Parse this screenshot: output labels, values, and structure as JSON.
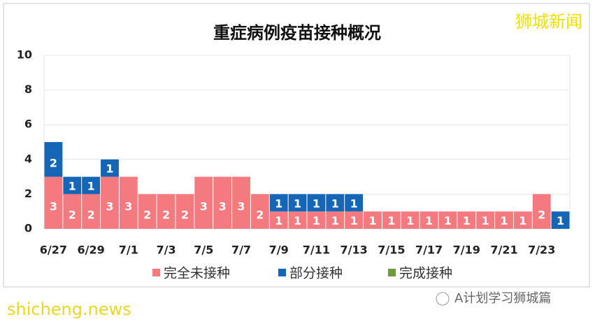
{
  "chart_data": {
    "type": "stacked_bar",
    "title": "重症病例疫苗接种概况",
    "categories": [
      "6/27",
      null,
      "6/29",
      null,
      "7/1",
      null,
      "7/3",
      null,
      "7/5",
      null,
      "7/7",
      null,
      "7/9",
      null,
      "7/11",
      null,
      "7/13",
      null,
      "7/15",
      null,
      "7/17",
      null,
      "7/19",
      null,
      "7/21",
      null,
      "7/23",
      null
    ],
    "series": [
      {
        "name": "完全未接种",
        "color": "#f47a80",
        "values": [
          3,
          2,
          2,
          3,
          3,
          2,
          2,
          2,
          3,
          3,
          3,
          2,
          1,
          1,
          1,
          1,
          1,
          1,
          1,
          1,
          1,
          1,
          1,
          1,
          1,
          1,
          2,
          0
        ]
      },
      {
        "name": "部分接种",
        "color": "#1666b8",
        "values": [
          2,
          1,
          1,
          1,
          0,
          0,
          0,
          0,
          0,
          0,
          0,
          0,
          1,
          1,
          1,
          1,
          1,
          0,
          0,
          0,
          0,
          0,
          0,
          0,
          0,
          0,
          0,
          1
        ]
      },
      {
        "name": "完成接种",
        "color": "#6f9a3a",
        "values": [
          0,
          0,
          0,
          0,
          0,
          0,
          0,
          0,
          0,
          0,
          0,
          0,
          0,
          0,
          0,
          0,
          0,
          0,
          0,
          0,
          0,
          0,
          0,
          0,
          0,
          0,
          0,
          0
        ]
      }
    ],
    "ylim": [
      0,
      10
    ],
    "yticks": [
      0,
      2,
      4,
      6,
      8,
      10
    ],
    "grid": true
  },
  "watermarks": {
    "top": "狮城新闻",
    "bottom": "shicheng.news",
    "source": "A计划学习狮城篇"
  }
}
